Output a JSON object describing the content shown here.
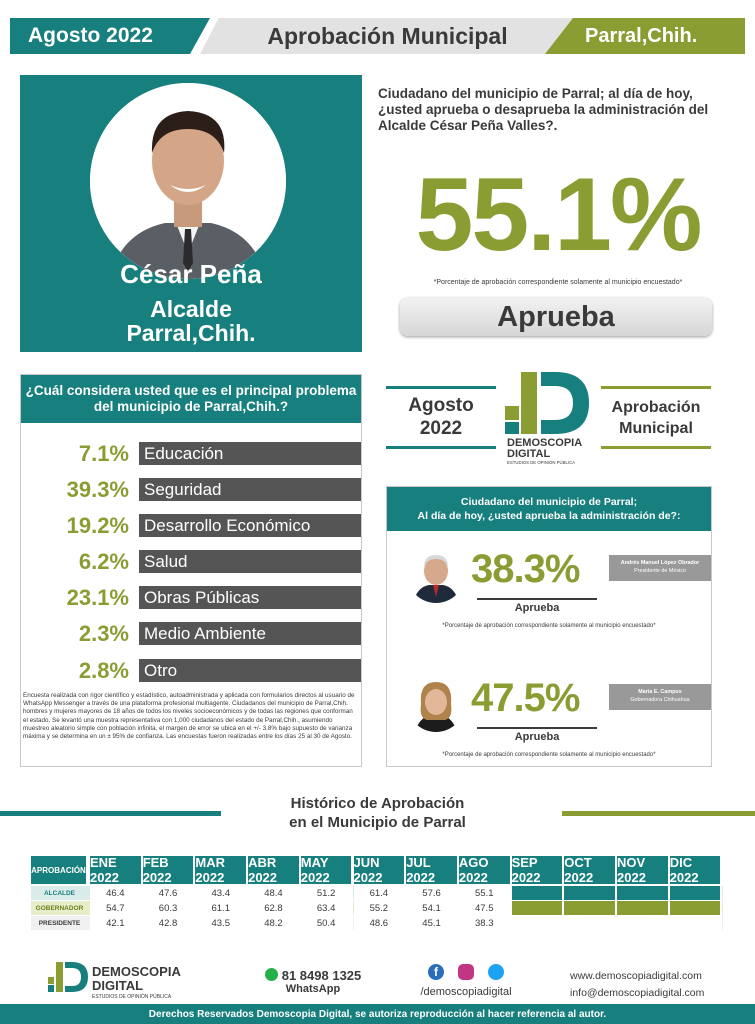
{
  "header": {
    "date": "Agosto 2022",
    "title": "Aprobación Municipal",
    "city": "Parral,Chih."
  },
  "profile": {
    "name": "César Peña",
    "role_line1": "Alcalde",
    "role_line2": "Parral,Chih."
  },
  "question": "Ciudadano del municipio de Parral; al día de hoy, ¿usted aprueba o desaprueba la administración del Alcalde César Peña Valles?.",
  "result": {
    "percent": "55.1%",
    "note": "*Porcentaje de aprobación correspondiente solamente al municipio encuestado*",
    "label": "Aprueba"
  },
  "problems": {
    "title": "¿Cuál considera usted que es el principal problema del municipio de Parral,Chih.?",
    "items": [
      {
        "percent": "7.1%",
        "label": "Educación"
      },
      {
        "percent": "39.3%",
        "label": "Seguridad"
      },
      {
        "percent": "19.2%",
        "label": "Desarrollo Económico"
      },
      {
        "percent": "6.2%",
        "label": "Salud"
      },
      {
        "percent": "23.1%",
        "label": "Obras Públicas"
      },
      {
        "percent": "2.3%",
        "label": "Medio Ambiente"
      },
      {
        "percent": "2.8%",
        "label": "Otro"
      }
    ],
    "methodology": "Encuesta realizada con rigor científico y estadístico, autoadministrada y aplicada con formularios directos al usuario de WhatsApp Messenger a través de una plataforma profesional multiagente. Ciudadanos del municipio de Parral,Chih. hombres y mujeres mayores de 18 años de todos los niveles socioeconómicos y de todas las regiones que conforman el estado. Se levantó una muestra representativa con 1,000 ciudadanos del estado de Parral,Chih., asumiendo muestreo aleatorio simple con población infinita, el margen de error se ubica en el +/- 3.8% bajo supuesto de varianza máxima y se determina en un ± 95% de confianza. Las encuestas fueron realizadas entre los días 25 al 30 de Agosto."
  },
  "middle": {
    "left_line1": "Agosto",
    "left_line2": "2022",
    "logo_name": "DEMOSCOPIA",
    "logo_name2": "DIGITAL",
    "logo_tagline": "ESTUDIOS DE OPINIÓN PÚBLICA",
    "right_line1": "Aprobación",
    "right_line2": "Municipal"
  },
  "others": {
    "title_line1": "Ciudadano del municipio de Parral;",
    "title_line2": "Al día de hoy, ¿usted aprueba la administración de?:",
    "people": [
      {
        "percent": "38.3%",
        "label": "Aprueba",
        "name": "Andrés Manuel López Obrador",
        "position": "Presidente de México",
        "note": "*Porcentaje de aprobación correspondiente solamente al municipio encuestado*"
      },
      {
        "percent": "47.5%",
        "label": "Aprueba",
        "name": "María E. Campos",
        "position": "Gobernadora Chihuahua",
        "note": "*Porcentaje de aprobación correspondiente solamente al municipio encuestado*"
      }
    ]
  },
  "history": {
    "title_line1": "Histórico de Aprobación",
    "title_line2": "en el Municipio de Parral",
    "header_label": "APROBACIÓN",
    "months": [
      "ENE 2022",
      "FEB 2022",
      "MAR 2022",
      "ABR 2022",
      "MAY 2022",
      "JUN 2022",
      "JUL 2022",
      "AGO 2022",
      "SEP 2022",
      "OCT 2022",
      "NOV 2022",
      "DIC 2022"
    ],
    "rows": [
      {
        "label": "ALCALDE",
        "values": [
          "46.4",
          "47.6",
          "43.4",
          "48.4",
          "51.2",
          "61.4",
          "57.6",
          "55.1",
          "",
          "",
          "",
          ""
        ]
      },
      {
        "label": "GOBERNADOR",
        "values": [
          "54.7",
          "60.3",
          "61.1",
          "62.8",
          "63.4",
          "55.2",
          "54.1",
          "47.5",
          "",
          "",
          "",
          ""
        ]
      },
      {
        "label": "PRESIDENTE",
        "values": [
          "42.1",
          "42.8",
          "43.5",
          "48.2",
          "50.4",
          "48.6",
          "45.1",
          "38.3",
          "",
          "",
          "",
          ""
        ]
      }
    ]
  },
  "footer": {
    "brand": "DEMOSCOPIA",
    "brand2": "DIGITAL",
    "brand_tagline": "ESTUDIOS DE OPINIÓN PÚBLICA",
    "phone": "81 8498 1325",
    "phone_label": "WhatsApp",
    "social_handle": "/demoscopiadigital",
    "website": "www.demoscopiadigital.com",
    "email": "info@demoscopiadigital.com",
    "rights": "Derechos Reservados Demoscopia Digital, se autoriza reproducción al hacer referencia al autor."
  },
  "colors": {
    "teal": "#177f7e",
    "olive": "#8a9d32",
    "gray": "#555555"
  }
}
